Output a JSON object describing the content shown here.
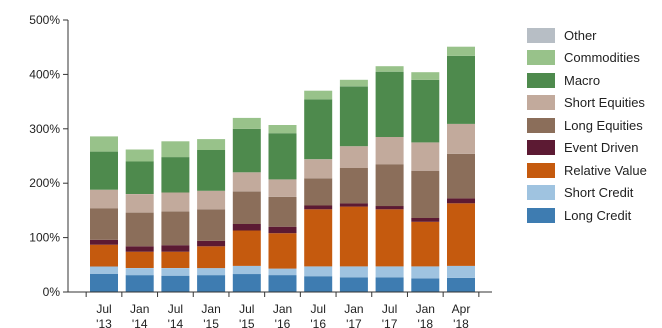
{
  "chart_data": {
    "type": "bar",
    "stacked": true,
    "categories": [
      [
        "Jul",
        "'13"
      ],
      [
        "Jan",
        "'14"
      ],
      [
        "Jul",
        "'14"
      ],
      [
        "Jan",
        "'15"
      ],
      [
        "Jul",
        "'15"
      ],
      [
        "Jan",
        "'16"
      ],
      [
        "Jul",
        "'16"
      ],
      [
        "Jan",
        "'17"
      ],
      [
        "Jul",
        "'17"
      ],
      [
        "Jan",
        "'18"
      ],
      [
        "Apr",
        "'18"
      ]
    ],
    "yticks": [
      "0%",
      "100%",
      "200%",
      "300%",
      "400%",
      "500%"
    ],
    "ylim": [
      0,
      500
    ],
    "grid": false,
    "legend_position": "right",
    "series": [
      {
        "name": "Long Credit",
        "color": "#3e7cb1",
        "values": [
          33,
          31,
          30,
          31,
          33,
          31,
          29,
          27,
          27,
          25,
          26
        ]
      },
      {
        "name": "Short Credit",
        "color": "#9fc3e0",
        "values": [
          14,
          13,
          14,
          13,
          15,
          12,
          18,
          20,
          20,
          22,
          22
        ]
      },
      {
        "name": "Relative Value",
        "color": "#c55a0e",
        "values": [
          40,
          30,
          30,
          40,
          65,
          65,
          105,
          110,
          105,
          82,
          115
        ]
      },
      {
        "name": "Event Driven",
        "color": "#5c1a33",
        "values": [
          9,
          10,
          12,
          10,
          12,
          12,
          7,
          6,
          6,
          7,
          9
        ]
      },
      {
        "name": "Long Equities",
        "color": "#8b6e5a",
        "values": [
          58,
          62,
          62,
          58,
          60,
          55,
          50,
          65,
          77,
          87,
          82
        ]
      },
      {
        "name": "Short Equities",
        "color": "#c2aa9c",
        "values": [
          34,
          34,
          35,
          34,
          35,
          32,
          35,
          40,
          50,
          52,
          55
        ]
      },
      {
        "name": "Macro",
        "color": "#4e8a4d",
        "values": [
          70,
          60,
          65,
          75,
          80,
          85,
          110,
          110,
          120,
          115,
          125
        ]
      },
      {
        "name": "Commodities",
        "color": "#98c28a",
        "values": [
          28,
          22,
          29,
          20,
          20,
          15,
          16,
          12,
          10,
          14,
          17
        ]
      },
      {
        "name": "Other",
        "color": "#b7bec5",
        "values": [
          0,
          0,
          0,
          0,
          0,
          0,
          0,
          0,
          0,
          0,
          0
        ]
      }
    ]
  }
}
